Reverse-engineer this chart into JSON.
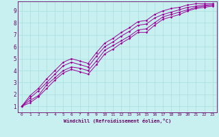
{
  "xlabel": "Windchill (Refroidissement éolien,°C)",
  "ylabel": "",
  "bg_color": "#c8f0f0",
  "line_color": "#990099",
  "grid_color": "#aadddd",
  "axis_color": "#660066",
  "xlim": [
    -0.5,
    23.5
  ],
  "ylim": [
    0.5,
    9.8
  ],
  "xticks": [
    0,
    1,
    2,
    3,
    4,
    5,
    6,
    7,
    8,
    9,
    10,
    11,
    12,
    13,
    14,
    15,
    16,
    17,
    18,
    19,
    20,
    21,
    22,
    23
  ],
  "yticks": [
    1,
    2,
    3,
    4,
    5,
    6,
    7,
    8,
    9
  ],
  "series": [
    {
      "x": [
        0,
        1,
        2,
        3,
        4,
        5,
        6,
        7,
        8,
        9,
        10,
        11,
        12,
        13,
        14,
        15,
        16,
        17,
        18,
        19,
        20,
        21,
        22,
        23
      ],
      "y": [
        1.0,
        1.5,
        1.9,
        2.8,
        3.4,
        4.0,
        4.3,
        4.2,
        4.0,
        4.8,
        5.7,
        6.1,
        6.5,
        6.9,
        7.4,
        7.5,
        8.0,
        8.5,
        8.7,
        8.9,
        9.1,
        9.3,
        9.4,
        9.5
      ]
    },
    {
      "x": [
        0,
        1,
        2,
        3,
        4,
        5,
        6,
        7,
        8,
        9,
        10,
        11,
        12,
        13,
        14,
        15,
        16,
        17,
        18,
        19,
        20,
        21,
        22,
        23
      ],
      "y": [
        1.0,
        1.7,
        2.3,
        3.0,
        3.7,
        4.4,
        4.7,
        4.5,
        4.3,
        5.2,
        6.0,
        6.4,
        6.9,
        7.3,
        7.8,
        7.9,
        8.4,
        8.7,
        8.9,
        9.1,
        9.3,
        9.4,
        9.5,
        9.5
      ]
    },
    {
      "x": [
        0,
        1,
        2,
        3,
        4,
        5,
        6,
        7,
        8,
        9,
        10,
        11,
        12,
        13,
        14,
        15,
        16,
        17,
        18,
        19,
        20,
        21,
        22,
        23
      ],
      "y": [
        1.0,
        1.9,
        2.5,
        3.3,
        4.0,
        4.7,
        5.0,
        4.8,
        4.6,
        5.5,
        6.3,
        6.7,
        7.2,
        7.6,
        8.1,
        8.2,
        8.7,
        9.0,
        9.2,
        9.3,
        9.5,
        9.6,
        9.6,
        9.6
      ]
    },
    {
      "x": [
        0,
        1,
        2,
        3,
        4,
        5,
        6,
        7,
        8,
        9,
        10,
        11,
        12,
        13,
        14,
        15,
        16,
        17,
        18,
        19,
        20,
        21,
        22,
        23
      ],
      "y": [
        1.0,
        1.3,
        1.8,
        2.5,
        3.2,
        3.8,
        4.1,
        3.9,
        3.7,
        4.5,
        5.4,
        5.8,
        6.3,
        6.7,
        7.2,
        7.2,
        7.8,
        8.3,
        8.5,
        8.7,
        9.0,
        9.2,
        9.3,
        9.4
      ]
    }
  ]
}
